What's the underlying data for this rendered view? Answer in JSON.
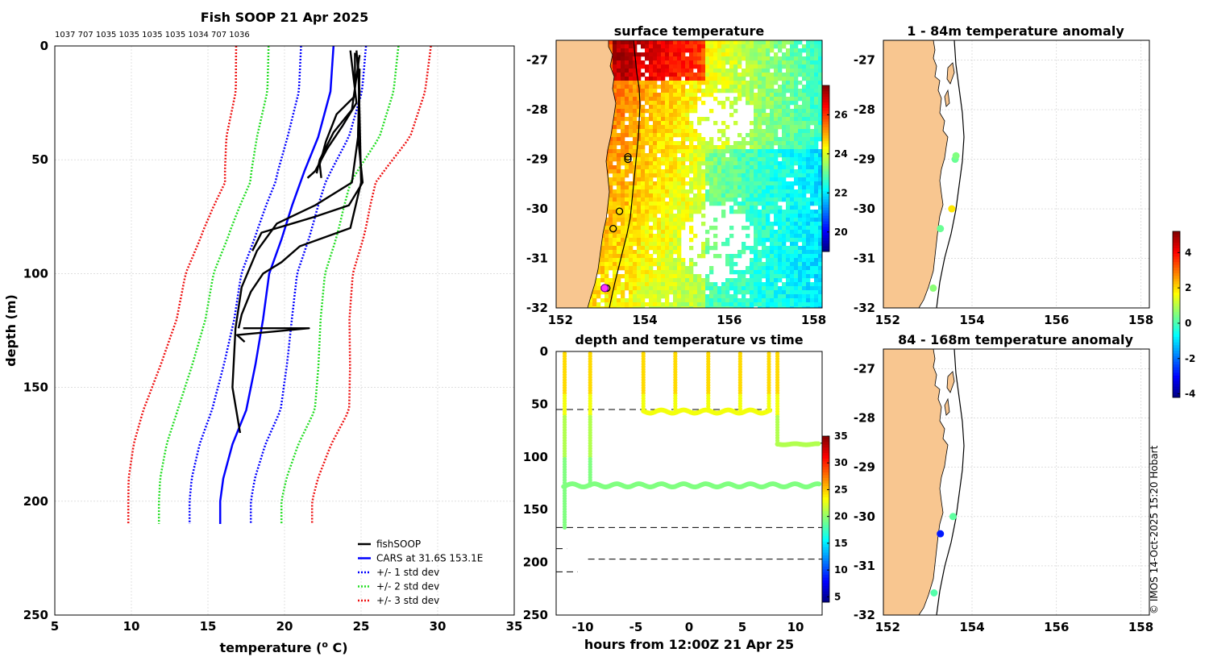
{
  "footer": {
    "credit": "© IMOS 14-Oct-2025 15:20 Hobart"
  },
  "colors": {
    "land": "#f8c690",
    "grid": "#cccccc",
    "profile": "#000000",
    "cars": "#0000ff",
    "std1": "#0000ff",
    "std2": "#22dd22",
    "std3": "#ee1111"
  },
  "chart_data": [
    {
      "id": "profile",
      "type": "line",
      "title": "Fish SOOP 21 Apr 2025",
      "subtitle": "1037 707 1035 1035 1035 1035 1034 707 1036",
      "xlabel": "temperature (",
      "xlabel_sup": "o",
      "xlabel_tail": " C)",
      "ylabel": "depth (m)",
      "xlim": [
        5,
        35
      ],
      "ylim": [
        250,
        0
      ],
      "xticks": [
        5,
        10,
        15,
        20,
        25,
        30,
        35
      ],
      "yticks": [
        0,
        50,
        100,
        150,
        200,
        250
      ],
      "legend": [
        "fishSOOP",
        "CARS at 31.6S 153.1E",
        "+/- 1 std dev",
        "+/- 2 std dev",
        "+/- 3 std dev"
      ],
      "legend_position": "bottom-right",
      "cars": [
        [
          23.2,
          0
        ],
        [
          23,
          20
        ],
        [
          22.2,
          40
        ],
        [
          21.3,
          55
        ],
        [
          20.5,
          70
        ],
        [
          19.8,
          85
        ],
        [
          19,
          100
        ],
        [
          18.6,
          120
        ],
        [
          18.1,
          140
        ],
        [
          17.5,
          160
        ],
        [
          16.6,
          175
        ],
        [
          16,
          190
        ],
        [
          15.8,
          200
        ],
        [
          15.8,
          210
        ]
      ],
      "std_offsets": [
        2,
        4,
        6
      ],
      "std_ext": [
        [
          0,
          0.2
        ],
        [
          40,
          0
        ],
        [
          60,
          -0.6
        ],
        [
          80,
          -0.4
        ],
        [
          120,
          -0.2
        ],
        [
          160,
          0.4
        ],
        [
          200,
          0
        ],
        [
          210,
          0
        ]
      ],
      "fish_profiles": [
        [
          [
            24.7,
            2
          ],
          [
            24.9,
            20
          ],
          [
            24.8,
            40
          ],
          [
            25.1,
            60
          ],
          [
            24.2,
            70
          ],
          [
            22,
            75
          ],
          [
            20.5,
            78
          ],
          [
            18.5,
            82
          ],
          [
            17.9,
            90
          ]
        ],
        [
          [
            24.3,
            2
          ],
          [
            24.7,
            25
          ],
          [
            23.8,
            35
          ],
          [
            22.8,
            45
          ],
          [
            22,
            55
          ],
          [
            21.5,
            58
          ]
        ],
        [
          [
            24.9,
            4
          ],
          [
            24.4,
            28
          ],
          [
            23.2,
            38
          ],
          [
            22.3,
            50
          ],
          [
            22.1,
            56
          ]
        ],
        [
          [
            24.6,
            3
          ],
          [
            24.6,
            22
          ],
          [
            23.4,
            30
          ],
          [
            22.7,
            42
          ],
          [
            22.3,
            52
          ],
          [
            22.4,
            58
          ]
        ],
        [
          [
            24.8,
            5
          ],
          [
            24.9,
            30
          ],
          [
            25,
            60
          ],
          [
            24.3,
            80
          ],
          [
            21,
            88
          ],
          [
            19.8,
            95
          ],
          [
            18.6,
            100
          ],
          [
            17.8,
            108
          ],
          [
            17.2,
            118
          ],
          [
            17,
            124
          ]
        ],
        [
          [
            24.9,
            10
          ],
          [
            24.8,
            40
          ],
          [
            24.4,
            60
          ],
          [
            22,
            70
          ],
          [
            19.5,
            78
          ],
          [
            18.2,
            90
          ],
          [
            17.2,
            106
          ],
          [
            16.8,
            124
          ],
          [
            16.6,
            150
          ],
          [
            17.1,
            170
          ]
        ],
        [
          [
            17.3,
            124
          ],
          [
            21.6,
            124
          ],
          [
            16.9,
            127
          ],
          [
            17.4,
            130
          ]
        ]
      ]
    },
    {
      "id": "sst",
      "type": "heatmap",
      "title": "surface temperature",
      "xlim": [
        151.9,
        158.2
      ],
      "ylim": [
        -32,
        -26.6
      ],
      "xticks": [
        152,
        154,
        156,
        158
      ],
      "yticks": [
        -27,
        -28,
        -29,
        -30,
        -31,
        -32
      ],
      "colorbar": {
        "min": 19,
        "max": 27.5,
        "ticks": [
          20,
          22,
          24,
          26
        ]
      },
      "stations": [
        [
          153.6,
          -29
        ],
        [
          153.6,
          -28.95
        ],
        [
          153.4,
          -30.05
        ],
        [
          153.25,
          -30.4
        ],
        [
          153.1,
          -31.6
        ]
      ],
      "current_station": [
        153.05,
        -31.6
      ]
    },
    {
      "id": "time",
      "type": "scatter",
      "title": "depth and temperature vs time",
      "xlabel": "hours from 12:00Z 21 Apr 25",
      "xlim": [
        -12.5,
        12.5
      ],
      "ylim": [
        250,
        0
      ],
      "xticks": [
        -10,
        -5,
        0,
        5,
        10
      ],
      "yticks": [
        0,
        50,
        100,
        150,
        200,
        250
      ],
      "colorbar": {
        "min": 4,
        "max": 35,
        "ticks": [
          5,
          10,
          15,
          20,
          25,
          30,
          35
        ]
      },
      "bottom_depth_segments": [
        [
          -12.5,
          7.8,
          55
        ],
        [
          8.3,
          12.5,
          87
        ],
        [
          -12.5,
          12.5,
          167
        ],
        [
          -12.5,
          -11.5,
          187
        ],
        [
          -9.5,
          12.5,
          197
        ],
        [
          -12.5,
          -10.5,
          209
        ]
      ]
    },
    {
      "id": "anom_shallow",
      "type": "scatter",
      "title": "1 - 84m temperature anomaly",
      "xlim": [
        151.9,
        158.2
      ],
      "ylim": [
        -32,
        -26.6
      ],
      "xticks": [
        152,
        154,
        156,
        158
      ],
      "yticks": [
        -27,
        -28,
        -29,
        -30,
        -31,
        -32
      ],
      "points": [
        [
          153.6,
          -29,
          0.3
        ],
        [
          153.62,
          -28.93,
          0.5
        ],
        [
          153.52,
          -30,
          1.9
        ],
        [
          153.25,
          -30.4,
          0.3
        ],
        [
          153.08,
          -31.6,
          0.6
        ]
      ]
    },
    {
      "id": "anom_deep",
      "type": "scatter",
      "title": "84 - 168m temperature anomaly",
      "xlim": [
        151.9,
        158.2
      ],
      "ylim": [
        -32,
        -26.6
      ],
      "xticks": [
        152,
        154,
        156,
        158
      ],
      "yticks": [
        -27,
        -28,
        -29,
        -30,
        -31,
        -32
      ],
      "colorbar": {
        "min": -4.2,
        "max": 5.2,
        "ticks": [
          -4,
          -2,
          0,
          2,
          4
        ]
      },
      "points": [
        [
          153.55,
          -30,
          0.2
        ],
        [
          153.25,
          -30.35,
          -2.8
        ],
        [
          153.1,
          -31.55,
          0.1
        ]
      ]
    }
  ]
}
